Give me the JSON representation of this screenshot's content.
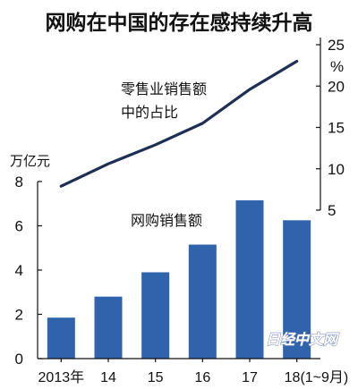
{
  "chart_data": {
    "type": "bar+line",
    "title": "网购在中国的存在感持续升高",
    "categories": [
      "2013年",
      "14",
      "15",
      "16",
      "17",
      "18(1~9月)"
    ],
    "series": [
      {
        "name": "网购销售额",
        "type": "bar",
        "axis": "left",
        "color": "#2f64ad",
        "values": [
          1.85,
          2.8,
          3.9,
          5.15,
          7.15,
          6.25
        ]
      },
      {
        "name": "零售业销售额中的占比",
        "type": "line",
        "axis": "right",
        "color": "#1d2f55",
        "values": [
          7.9,
          10.6,
          12.9,
          15.5,
          19.6,
          23.0
        ]
      }
    ],
    "left_axis": {
      "label": "万亿元",
      "ylim": [
        0,
        8
      ],
      "ticks": [
        0,
        2,
        4,
        6,
        8
      ]
    },
    "right_axis": {
      "unit": "%",
      "ylim": [
        5,
        25
      ],
      "ticks": [
        5,
        10,
        15,
        20,
        25
      ]
    },
    "bar_annotation": "网购销售额",
    "line_annotation": [
      "零售业销售额",
      "中的占比"
    ],
    "grid": false,
    "legend": "none"
  },
  "watermark": "日经中文网"
}
